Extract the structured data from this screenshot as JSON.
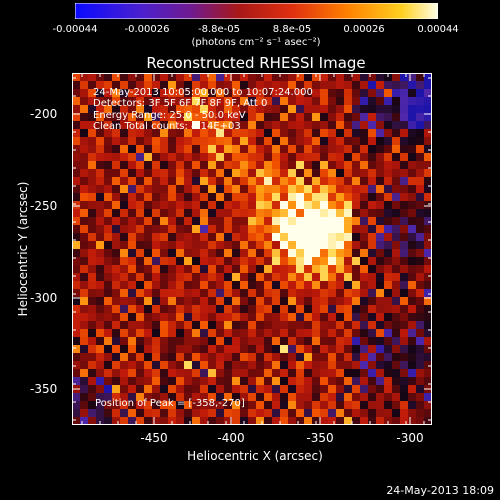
{
  "colorbar": {
    "ticks": [
      "-0.00044",
      "-0.00026",
      "-8.8e-05",
      "8.8e-05",
      "0.00026",
      "0.00044"
    ],
    "unit_label": "(photons cm⁻² s⁻¹ asec⁻²)",
    "colors": [
      "#1010ff",
      "#5020c0",
      "#7a1090",
      "#c02020",
      "#ff5000",
      "#ffc000",
      "#ffffe0"
    ]
  },
  "title": "Reconstructed RHESSI Image",
  "overlay": {
    "line1": "24-May-2013 10:05:00.000 to 10:07:24.000",
    "line2": "Detectors: 3F 5F 6F 7F 8F 9F, Att 0",
    "line3": "Energy Range: 25.0 - 50.0 keV",
    "line4": "Clean     Total counts: 4.14E+03",
    "peak": "Position of Peak = [-358,-270]"
  },
  "axes": {
    "xlabel": "Heliocentric X (arcsec)",
    "ylabel": "Heliocentric Y (arcsec)",
    "xticks": [
      "-450",
      "-400",
      "-350",
      "-300"
    ],
    "yticks": [
      "-200",
      "-250",
      "-300",
      "-350"
    ],
    "xlim": [
      -490,
      -295
    ],
    "ylim": [
      -375,
      -185
    ]
  },
  "footer_stamp": "24-May-2013 18:09",
  "image": {
    "peak": [
      -358,
      -270
    ],
    "color_scale": "idl-red-temperature"
  }
}
